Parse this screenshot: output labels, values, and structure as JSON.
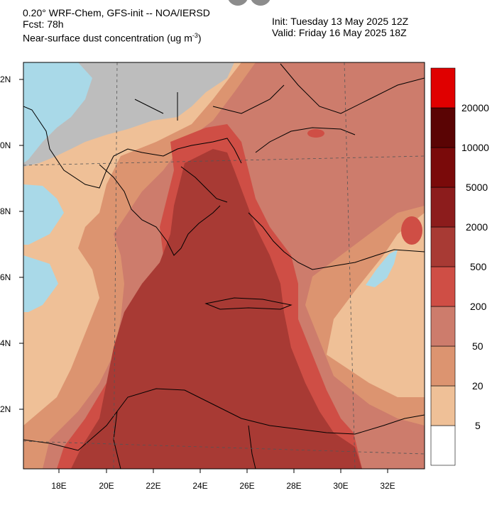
{
  "header": {
    "title_line1": "0.20° WRF-Chem, GFS-init -- NOA/IERSD",
    "title_line2": "Fcst: 78h",
    "title_line3_prefix": "Near-surface dust concentration (ug m",
    "title_line3_sup": "-3",
    "title_line3_suffix": ")",
    "init": "Init: Tuesday 13 May 2025  12Z",
    "valid": "Valid: Friday 16 May 2025  18Z"
  },
  "axes": {
    "lat_labels": [
      "2N",
      "0N",
      "8N",
      "6N",
      "4N",
      "2N"
    ],
    "lon_labels": [
      "18E",
      "20E",
      "22E",
      "24E",
      "26E",
      "28E",
      "30E",
      "32E"
    ]
  },
  "colorbar": {
    "labels": [
      "20000",
      "10000",
      "5000",
      "2000",
      "500",
      "200",
      "50",
      "20",
      "5"
    ],
    "colors": [
      "#ffffff",
      "#efc097",
      "#dc9470",
      "#cd7c6c",
      "#cf4e45",
      "#a83a34",
      "#8c1c1c",
      "#7a0a0a",
      "#5a0404",
      "#e00000"
    ]
  },
  "map_colors": {
    "sea_clear": "#a9d9e8",
    "land_masked": "#bdbdbd",
    "level_20": "#efc097",
    "level_50": "#dc9470",
    "level_200": "#cd7c6c",
    "level_500": "#cf4e45",
    "level_2000": "#a83a34"
  }
}
